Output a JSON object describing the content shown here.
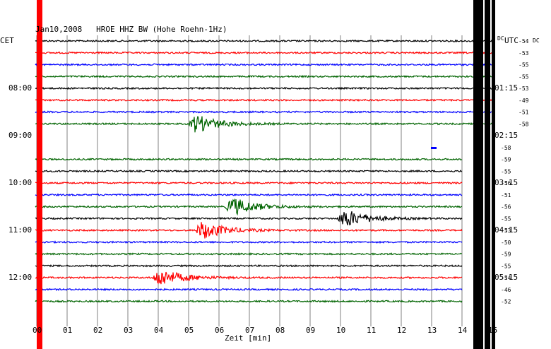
{
  "chart_data": {
    "type": "line",
    "title": "Jan10,2008   HROE HHZ BW (Hohe Roehn-1Hz)",
    "left_zone_label": "CET",
    "right_zone_label": "UTC",
    "right_zone_prefix": "DC",
    "xlabel": "Zeit [min]",
    "xlim": [
      0,
      15
    ],
    "x_ticks": [
      "00",
      "01",
      "02",
      "03",
      "04",
      "05",
      "06",
      "07",
      "08",
      "09",
      "10",
      "11",
      "12",
      "13",
      "14",
      "15"
    ],
    "cet_hour_labels": [
      "08:00",
      "09:00",
      "10:00",
      "11:00",
      "12:00"
    ],
    "utc_hour_labels": [
      "01:15",
      "02:15",
      "03:15",
      "04:15",
      "05:15"
    ],
    "trace_colors": [
      "#000000",
      "#ff0000",
      "#0000ff",
      "#006400"
    ],
    "traces": [
      {
        "row": 0,
        "color": "black",
        "dc": "-54"
      },
      {
        "row": 1,
        "color": "red",
        "dc": "-53"
      },
      {
        "row": 2,
        "color": "blue",
        "dc": "-55"
      },
      {
        "row": 3,
        "color": "green",
        "dc": "-55"
      },
      {
        "row": 4,
        "color": "black",
        "dc": "-53"
      },
      {
        "row": 5,
        "color": "red",
        "dc": "-49"
      },
      {
        "row": 6,
        "color": "blue",
        "dc": "-51"
      },
      {
        "row": 7,
        "color": "green",
        "dc": "-58",
        "event_min": 5.0
      },
      {
        "row": 10,
        "color": "green",
        "dc": "-59"
      },
      {
        "row": 11,
        "color": "black",
        "dc": "-55"
      },
      {
        "row": 12,
        "color": "red",
        "dc": "-56"
      },
      {
        "row": 13,
        "color": "blue",
        "dc": "-51"
      },
      {
        "row": 14,
        "color": "green",
        "dc": "-56",
        "event_min": 6.2
      },
      {
        "row": 15,
        "color": "black",
        "dc": "-55",
        "event_min": 9.9
      },
      {
        "row": 16,
        "color": "red",
        "dc": "-53",
        "event_min": 5.2
      },
      {
        "row": 17,
        "color": "blue",
        "dc": "-50"
      },
      {
        "row": 18,
        "color": "green",
        "dc": "-59"
      },
      {
        "row": 19,
        "color": "black",
        "dc": "-55"
      },
      {
        "row": 20,
        "color": "red",
        "dc": "-54",
        "event_min": 3.8
      },
      {
        "row": 21,
        "color": "blue",
        "dc": "-46"
      },
      {
        "row": 22,
        "color": "green",
        "dc": "-52"
      }
    ],
    "extra_dc_labels": [
      {
        "row": 9,
        "dc": "-58"
      }
    ],
    "grid": true
  }
}
